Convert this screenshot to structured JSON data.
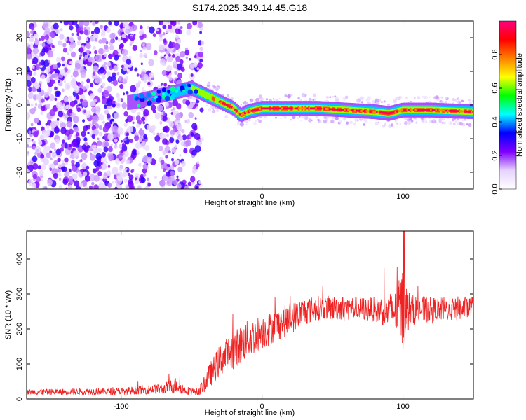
{
  "title": "S174.2025.349.14.45.G18",
  "chart_data": [
    {
      "type": "heatmap",
      "name": "spectrogram",
      "xlabel": "Height of straight line (km)",
      "ylabel": "Frequency (Hz)",
      "xlim": [
        -167,
        150
      ],
      "ylim": [
        -25,
        25
      ],
      "x_ticks": [
        -100,
        0,
        100
      ],
      "y_ticks": [
        20,
        10,
        0,
        -10,
        -20
      ],
      "ridge": {
        "x": [
          -167,
          -140,
          -110,
          -90,
          -80,
          -70,
          -60,
          -50,
          -40,
          -30,
          -20,
          -15,
          -10,
          0,
          20,
          40,
          60,
          80,
          90,
          95,
          100,
          120,
          150
        ],
        "y": [
          -2,
          -1,
          0,
          1,
          2,
          3,
          4,
          5,
          3,
          1,
          -1,
          -3,
          -2,
          -1,
          -1,
          -1,
          -1.5,
          -2,
          -2.5,
          -2,
          -1.5,
          -1.5,
          -2
        ]
      },
      "colorbar": {
        "label": "Normalized spectral amplitude",
        "range": [
          0,
          1
        ],
        "ticks": [
          "0.0",
          "0.2",
          "0.4",
          "0.6",
          "0.8"
        ],
        "tick_values": [
          0,
          0.2,
          0.4,
          0.6,
          0.8
        ],
        "colors": [
          "#ffffff",
          "#e6d2ff",
          "#7f00ff",
          "#0000ff",
          "#00ffff",
          "#00ff00",
          "#ffff00",
          "#ff8000",
          "#ff0000",
          "#ff0080"
        ]
      }
    },
    {
      "type": "line",
      "name": "snr",
      "xlabel": "Height of straight line (km)",
      "ylabel": "SNR (10 * v/v)",
      "xlim": [
        -167,
        150
      ],
      "ylim": [
        0,
        480
      ],
      "x_ticks": [
        -100,
        0,
        100
      ],
      "y_ticks": [
        0,
        100,
        200,
        300,
        400
      ],
      "color": "#ee2222",
      "envelope": {
        "x": [
          -167,
          -100,
          -70,
          -60,
          -55,
          -45,
          -40,
          -30,
          -20,
          -10,
          0,
          10,
          20,
          30,
          40,
          60,
          80,
          95,
          100,
          105,
          120,
          150
        ],
        "mean": [
          20,
          22,
          30,
          40,
          25,
          20,
          50,
          110,
          140,
          170,
          190,
          210,
          230,
          250,
          260,
          260,
          255,
          250,
          260,
          255,
          255,
          260
        ],
        "noise": [
          8,
          10,
          15,
          25,
          12,
          10,
          30,
          45,
          55,
          55,
          50,
          45,
          45,
          40,
          35,
          35,
          35,
          60,
          120,
          45,
          35,
          35
        ]
      }
    }
  ]
}
